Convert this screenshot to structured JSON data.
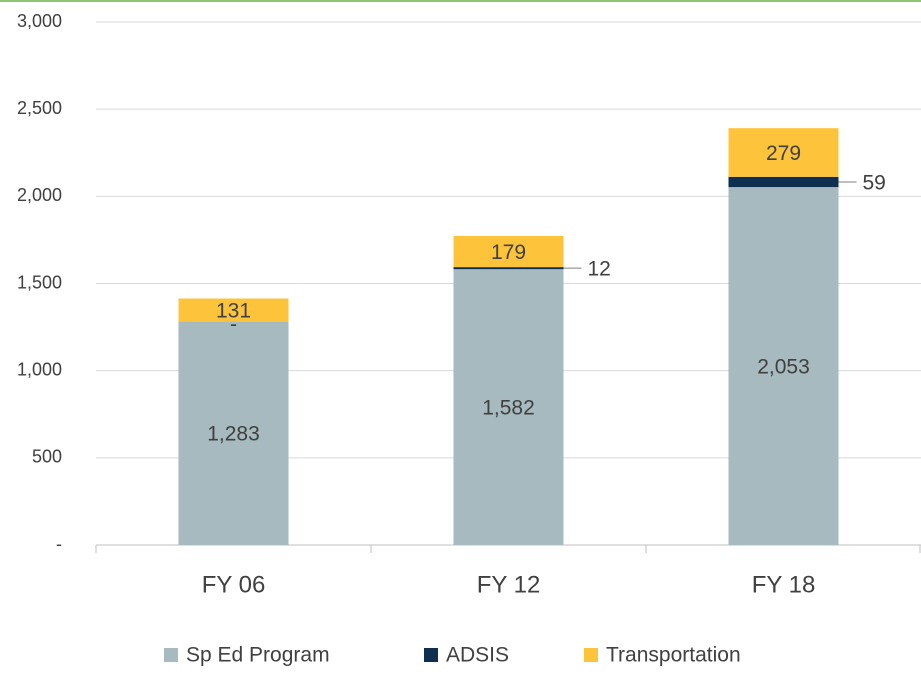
{
  "chart_data": {
    "type": "stacked_bar",
    "categories": [
      "FY 06",
      "FY 12",
      "FY 18"
    ],
    "series": [
      {
        "name": "Sp Ed Program",
        "color": "#a6babf",
        "values": [
          1283,
          1582,
          2053
        ],
        "value_labels": [
          "1,283",
          "1,582",
          "2,053"
        ]
      },
      {
        "name": "ADSIS",
        "color": "#0e2f4f",
        "values": [
          0,
          12,
          59
        ],
        "value_labels": [
          "-",
          "12",
          "59"
        ]
      },
      {
        "name": "Transportation",
        "color": "#fdc43b",
        "values": [
          131,
          179,
          279
        ]
      }
    ],
    "ylim": [
      0,
      3000
    ],
    "yticks": [
      {
        "value": 0,
        "label": "-"
      },
      500,
      {
        "value": 1000,
        "label": "1,000"
      },
      {
        "value": 1500,
        "label": "1,500"
      },
      {
        "value": 2000,
        "label": "2,000"
      },
      {
        "value": 2500,
        "label": "2,500"
      },
      {
        "value": 3000,
        "label": "3,000"
      }
    ],
    "grid": true,
    "legend": "bottom"
  }
}
